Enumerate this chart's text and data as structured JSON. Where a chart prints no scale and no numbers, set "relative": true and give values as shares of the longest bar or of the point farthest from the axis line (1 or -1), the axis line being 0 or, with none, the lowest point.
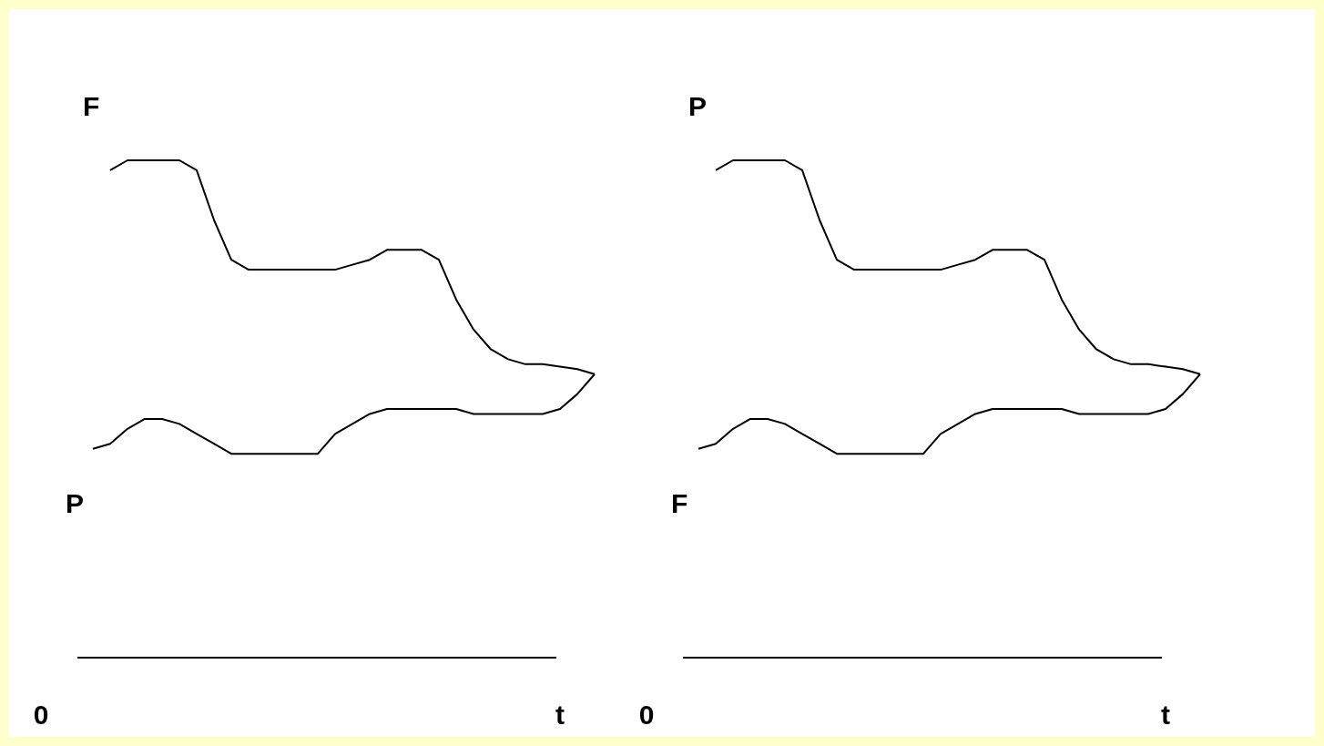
{
  "chart_data": [
    {
      "type": "line",
      "relative": true,
      "marker": "none",
      "line_style": "solid",
      "categories": [
        "0",
        null,
        null,
        null,
        null,
        null,
        null,
        null,
        null,
        null,
        null,
        null,
        null,
        null,
        null,
        null,
        null,
        null,
        null,
        null,
        null,
        null,
        null,
        null,
        null,
        null,
        null,
        null,
        null,
        null,
        "t",
        null,
        null
      ],
      "series": [
        {
          "name": "F",
          "color": "#000000",
          "values": [
            null,
            null,
            null,
            null,
            0.98,
            1,
            1,
            1,
            1,
            0.98,
            0.88,
            0.8,
            0.78,
            0.78,
            0.78,
            0.78,
            0.78,
            0.78,
            0.79,
            0.8,
            0.82,
            0.82,
            0.82,
            0.8,
            0.72,
            0.66,
            0.62,
            0.6,
            0.59,
            0.59,
            0.585,
            0.58,
            0.57
          ]
        },
        {
          "name": "P",
          "color": "#000000",
          "values": [
            null,
            null,
            null,
            0.42,
            0.43,
            0.46,
            0.48,
            0.48,
            0.47,
            0.45,
            0.43,
            0.41,
            0.41,
            0.41,
            0.41,
            0.41,
            0.41,
            0.45,
            0.47,
            0.49,
            0.5,
            0.5,
            0.5,
            0.5,
            0.5,
            0.49,
            0.49,
            0.49,
            0.49,
            0.49,
            0.5,
            0.53,
            0.57
          ]
        }
      ]
    },
    {
      "type": "line",
      "relative": true,
      "marker": "none",
      "line_style": "solid",
      "categories": [
        "0",
        null,
        null,
        null,
        null,
        null,
        null,
        null,
        null,
        null,
        null,
        null,
        null,
        null,
        null,
        null,
        null,
        null,
        null,
        null,
        null,
        null,
        null,
        null,
        null,
        null,
        null,
        null,
        null,
        null,
        "t",
        null,
        null
      ],
      "series": [
        {
          "name": "P",
          "color": "#000000",
          "values": [
            null,
            null,
            null,
            null,
            0.98,
            1,
            1,
            1,
            1,
            0.98,
            0.88,
            0.8,
            0.78,
            0.78,
            0.78,
            0.78,
            0.78,
            0.78,
            0.79,
            0.8,
            0.82,
            0.82,
            0.82,
            0.8,
            0.72,
            0.66,
            0.62,
            0.6,
            0.59,
            0.59,
            0.585,
            0.58,
            0.57
          ]
        },
        {
          "name": "F",
          "color": "#000000",
          "values": [
            null,
            null,
            null,
            0.42,
            0.43,
            0.46,
            0.48,
            0.48,
            0.47,
            0.45,
            0.43,
            0.41,
            0.41,
            0.41,
            0.41,
            0.41,
            0.41,
            0.45,
            0.47,
            0.49,
            0.5,
            0.5,
            0.5,
            0.5,
            0.5,
            0.49,
            0.49,
            0.49,
            0.49,
            0.49,
            0.5,
            0.53,
            0.57
          ]
        }
      ]
    }
  ]
}
